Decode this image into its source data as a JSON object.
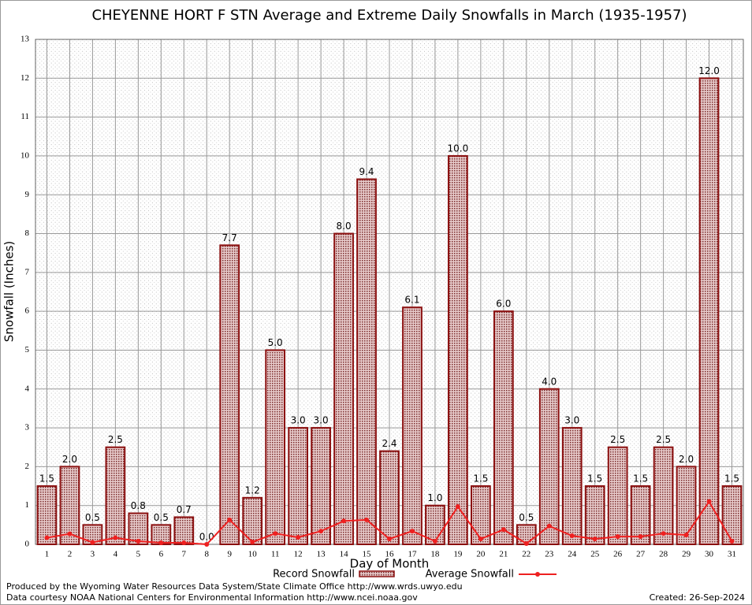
{
  "chart_data": {
    "type": "bar",
    "title": "CHEYENNE HORT F STN Average and Extreme Daily Snowfalls in March (1935-1957)",
    "x_label": "Day of Month",
    "y_label": "Snowfall (Inches)",
    "categories": [
      "1",
      "2",
      "3",
      "4",
      "5",
      "6",
      "7",
      "8",
      "9",
      "10",
      "11",
      "12",
      "13",
      "14",
      "15",
      "16",
      "17",
      "18",
      "19",
      "20",
      "21",
      "22",
      "23",
      "24",
      "25",
      "26",
      "27",
      "28",
      "29",
      "30",
      "31"
    ],
    "series": [
      {
        "name": "Record Snowfall",
        "type": "bar",
        "color": "#8b1010",
        "values": [
          1.5,
          2.0,
          0.5,
          2.5,
          0.8,
          0.5,
          0.7,
          0.0,
          7.7,
          1.2,
          5.0,
          3.0,
          3.0,
          8.0,
          9.4,
          2.4,
          6.1,
          1.0,
          10.0,
          1.5,
          6.0,
          0.5,
          4.0,
          3.0,
          1.5,
          2.5,
          1.5,
          2.5,
          2.0,
          12.0,
          1.5
        ],
        "value_labels": [
          "1.5",
          "2.0",
          "0.5",
          "2.5",
          "0.8",
          "0.5",
          "0.7",
          "0.0",
          "7.7",
          "1.2",
          "5.0",
          "3.0",
          "3.0",
          "8.0",
          "9.4",
          "2.4",
          "6.1",
          "1.0",
          "10.0",
          "1.5",
          "6.0",
          "0.5",
          "4.0",
          "3.0",
          "1.5",
          "2.5",
          "1.5",
          "2.5",
          "2.0",
          "12.0",
          "1.5"
        ]
      },
      {
        "name": "Average Snowfall",
        "type": "line",
        "color": "#ee2020",
        "values": [
          0.17,
          0.27,
          0.05,
          0.17,
          0.08,
          0.04,
          0.04,
          0.0,
          0.63,
          0.06,
          0.28,
          0.18,
          0.34,
          0.6,
          0.63,
          0.14,
          0.34,
          0.08,
          0.97,
          0.14,
          0.38,
          0.02,
          0.47,
          0.22,
          0.14,
          0.2,
          0.2,
          0.28,
          0.24,
          1.1,
          0.08
        ]
      }
    ],
    "ylim": [
      0,
      13
    ],
    "yticks": [
      0,
      1,
      2,
      3,
      4,
      5,
      6,
      7,
      8,
      9,
      10,
      11,
      12,
      13
    ],
    "grid": true,
    "legend": "bottom",
    "footer": [
      "Produced by the Wyoming Water Resources Data System/State Climate Office http://www.wrds.uwyo.edu",
      "Data courtesy NOAA National Centers for Environmental Information http://www.ncei.noaa.gov"
    ],
    "created": "Created:  26-Sep-2024"
  }
}
